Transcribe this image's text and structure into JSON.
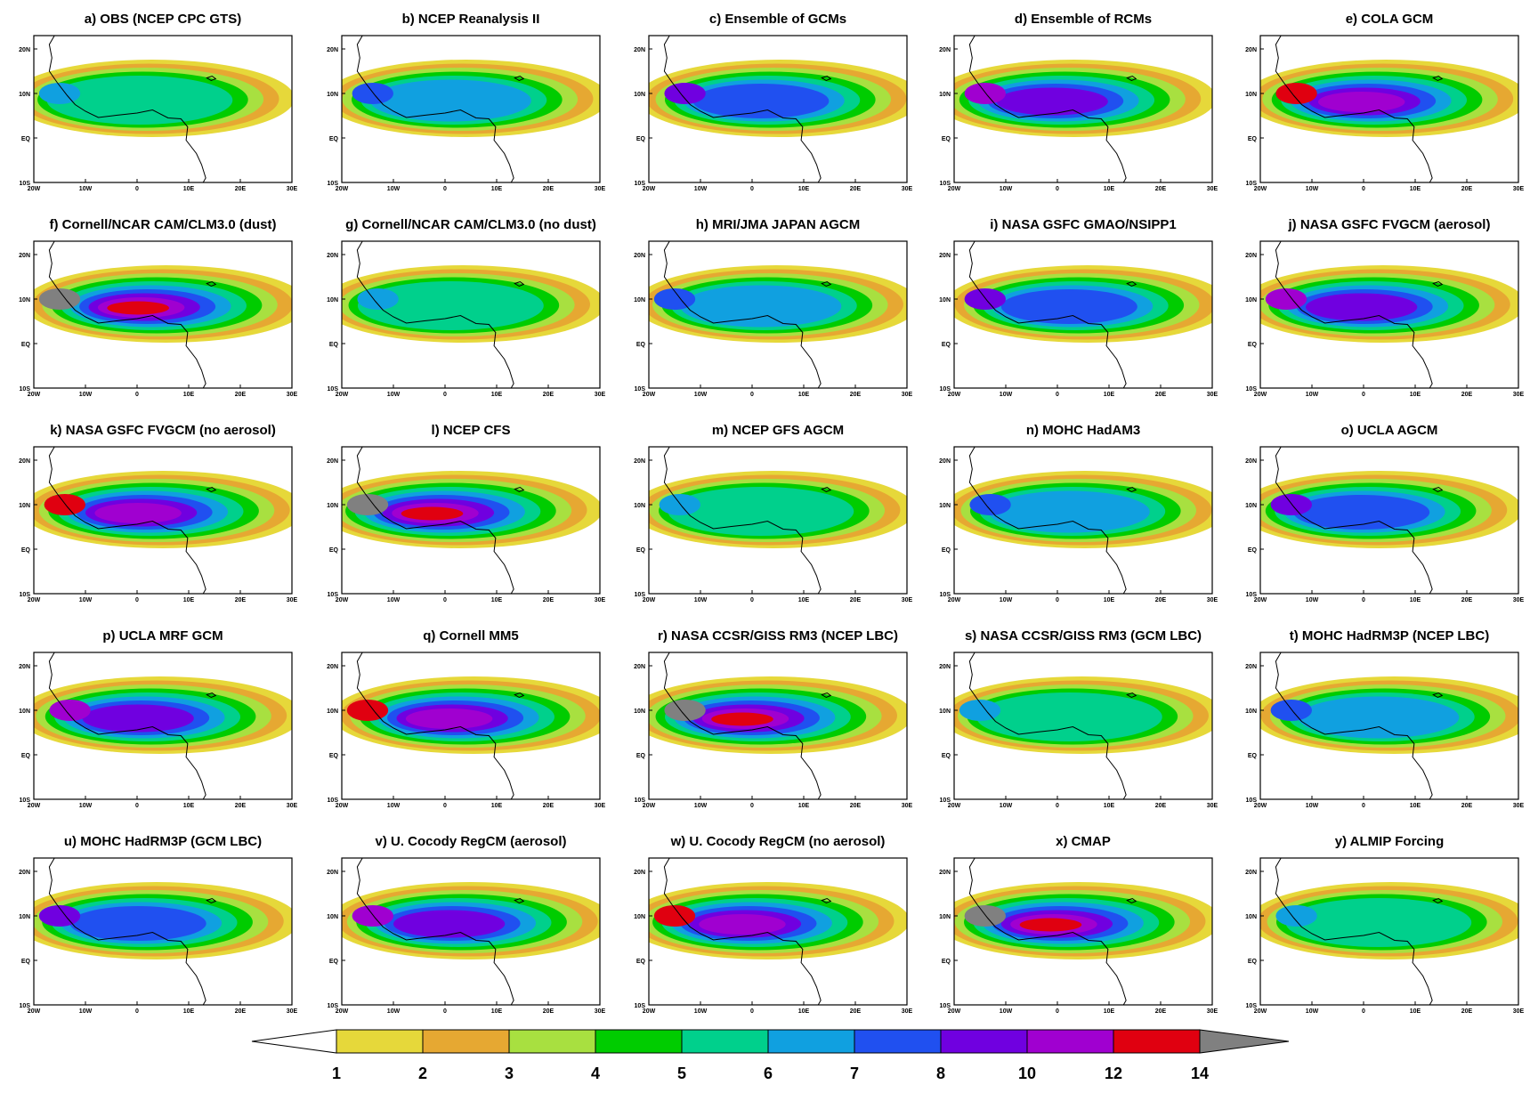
{
  "chart_data": {
    "type": "map",
    "panels": [
      {
        "title": "a) OBS (NCEP CPC GTS)"
      },
      {
        "title": "b) NCEP Reanalysis II"
      },
      {
        "title": "c) Ensemble of GCMs"
      },
      {
        "title": "d) Ensemble of RCMs"
      },
      {
        "title": "e) COLA GCM"
      },
      {
        "title": "f) Cornell/NCAR CAM/CLM3.0 (dust)"
      },
      {
        "title": "g) Cornell/NCAR CAM/CLM3.0 (no dust)"
      },
      {
        "title": "h) MRI/JMA JAPAN AGCM"
      },
      {
        "title": "i) NASA GSFC GMAO/NSIPP1"
      },
      {
        "title": "j) NASA GSFC FVGCM (aerosol)"
      },
      {
        "title": "k) NASA GSFC FVGCM (no aerosol)"
      },
      {
        "title": "l) NCEP CFS"
      },
      {
        "title": "m) NCEP GFS AGCM"
      },
      {
        "title": "n) MOHC HadAM3"
      },
      {
        "title": "o) UCLA AGCM"
      },
      {
        "title": "p) UCLA MRF GCM"
      },
      {
        "title": "q) Cornell MM5"
      },
      {
        "title": "r) NASA CCSR/GISS RM3 (NCEP LBC)"
      },
      {
        "title": "s) NASA CCSR/GISS RM3 (GCM LBC)"
      },
      {
        "title": "t) MOHC HadRM3P (NCEP LBC)"
      },
      {
        "title": "u) MOHC HadRM3P (GCM LBC)"
      },
      {
        "title": "v) U. Cocody RegCM (aerosol)"
      },
      {
        "title": "w) U. Cocody RegCM (no aerosol)"
      },
      {
        "title": "x) CMAP"
      },
      {
        "title": "y) ALMIP Forcing"
      }
    ],
    "xlim": [
      -20,
      30
    ],
    "ylim": [
      -10,
      23
    ],
    "xticks": [
      {
        "value": -20,
        "label": "20W"
      },
      {
        "value": -10,
        "label": "10W"
      },
      0,
      {
        "value": 10,
        "label": "10E"
      },
      {
        "value": 20,
        "label": "20E"
      },
      {
        "value": 30,
        "label": "30E"
      }
    ],
    "yticks": [
      {
        "value": 20,
        "label": "20N"
      },
      {
        "value": 10,
        "label": "10N"
      },
      {
        "value": 0,
        "label": "EQ"
      },
      {
        "value": -10,
        "label": "10S"
      }
    ],
    "colorbar": {
      "levels": [
        1,
        2,
        3,
        4,
        5,
        6,
        7,
        8,
        10,
        12,
        14
      ],
      "colors": [
        "#ffffff",
        "#e6d83a",
        "#e6a832",
        "#a8e040",
        "#00cc00",
        "#00d08c",
        "#10a0e0",
        "#2050f0",
        "#7000e0",
        "#a000d0",
        "#e00010",
        "#808080"
      ]
    }
  }
}
